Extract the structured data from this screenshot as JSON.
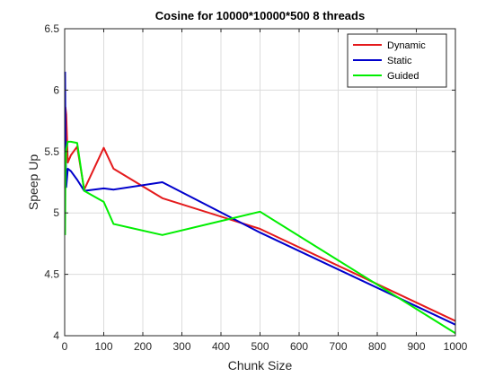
{
  "chart_data": {
    "type": "line",
    "title": "Cosine for 10000*10000*500 8 threads",
    "xlabel": "Chunk Size",
    "ylabel": "Speep Up",
    "xlim": [
      0,
      1000
    ],
    "ylim": [
      4,
      6.5
    ],
    "xticks": [
      0,
      100,
      200,
      300,
      400,
      500,
      600,
      700,
      800,
      900,
      1000
    ],
    "yticks": [
      4,
      4.5,
      5,
      5.5,
      6,
      6.5
    ],
    "xtick_labels": [
      "0",
      "100",
      "200",
      "300",
      "400",
      "500",
      "600",
      "700",
      "800",
      "900",
      "1000"
    ],
    "ytick_labels": [
      "4",
      "4.5",
      "5",
      "5.5",
      "6",
      "6.5"
    ],
    "grid": true,
    "legend_position": "top-right",
    "series": [
      {
        "name": "Dynamic",
        "color": "#e41a1c",
        "x": [
          1,
          2,
          4,
          8,
          16,
          32,
          50,
          100,
          125,
          250,
          500,
          1000
        ],
        "y": [
          5.2,
          5.86,
          5.8,
          5.41,
          5.47,
          5.54,
          5.19,
          5.53,
          5.36,
          5.12,
          4.87,
          4.12
        ]
      },
      {
        "name": "Static",
        "color": "#0000cc",
        "x": [
          1,
          2,
          4,
          8,
          16,
          32,
          50,
          100,
          125,
          250,
          500,
          1000
        ],
        "y": [
          6.15,
          5.6,
          5.21,
          5.36,
          5.34,
          5.27,
          5.18,
          5.2,
          5.19,
          5.25,
          4.84,
          4.09
        ]
      },
      {
        "name": "Guided",
        "color": "#00ee00",
        "x": [
          1,
          2,
          4,
          8,
          16,
          32,
          50,
          100,
          125,
          250,
          500,
          1000
        ],
        "y": [
          4.82,
          5.35,
          5.52,
          5.58,
          5.58,
          5.57,
          5.18,
          5.09,
          4.91,
          4.82,
          5.01,
          4.02
        ]
      }
    ]
  }
}
